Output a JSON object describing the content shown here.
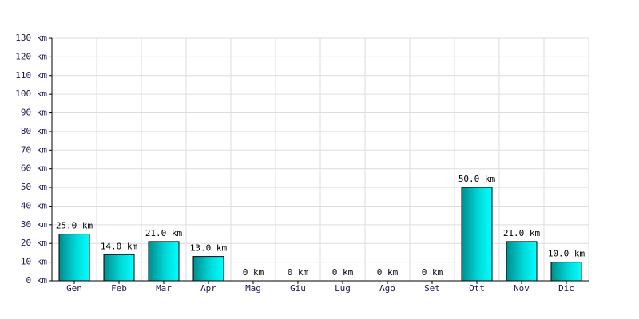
{
  "chart_data": {
    "type": "bar",
    "categories": [
      "Gen",
      "Feb",
      "Mar",
      "Apr",
      "Mag",
      "Giu",
      "Lug",
      "Ago",
      "Set",
      "Ott",
      "Nov",
      "Dic"
    ],
    "values": [
      25,
      14,
      21,
      13,
      0,
      0,
      0,
      0,
      0,
      50,
      21,
      10
    ],
    "value_labels": [
      "25.0 km",
      "14.0 km",
      "21.0 km",
      "13.0 km",
      "0 km",
      "0 km",
      "0 km",
      "0 km",
      "0 km",
      "50.0 km",
      "21.0 km",
      "10.0 km"
    ],
    "color": "#00c8c8",
    "ylim": [
      0,
      130
    ],
    "yticks": [
      {
        "value": 0,
        "label": "0 km"
      },
      {
        "value": 10,
        "label": "10 km"
      },
      {
        "value": 20,
        "label": "20 km"
      },
      {
        "value": 30,
        "label": "30 km"
      },
      {
        "value": 40,
        "label": "40 km"
      },
      {
        "value": 50,
        "label": "50 km"
      },
      {
        "value": 60,
        "label": "60 km"
      },
      {
        "value": 70,
        "label": "70 km"
      },
      {
        "value": 80,
        "label": "80 km"
      },
      {
        "value": 90,
        "label": "90 km"
      },
      {
        "value": 100,
        "label": "100 km"
      },
      {
        "value": 110,
        "label": "110 km"
      },
      {
        "value": 120,
        "label": "120 km"
      },
      {
        "value": 130,
        "label": "130 km"
      }
    ],
    "grid": true
  }
}
